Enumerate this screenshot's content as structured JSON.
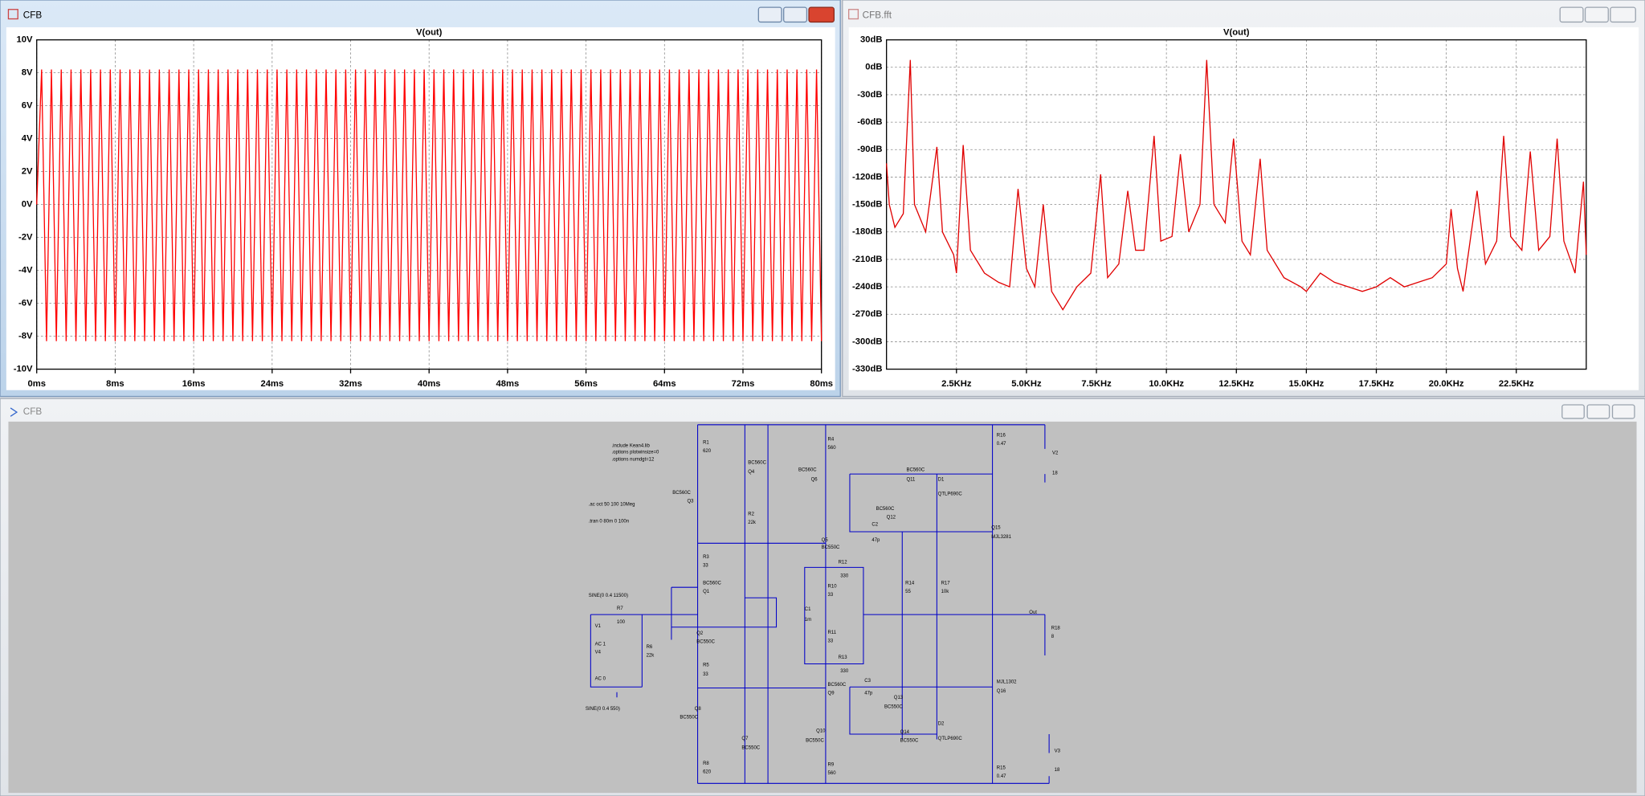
{
  "windows": {
    "transient_title": "CFB",
    "fft_title": "CFB.fft",
    "schematic_title": "CFB"
  },
  "chart_data": [
    {
      "type": "line",
      "title": "V(out)",
      "color": "#ff0000",
      "grid": true,
      "x": [
        0,
        0.5,
        1,
        1.5,
        2,
        2.5,
        3,
        3.5,
        4,
        4.5,
        5,
        5.5,
        6,
        6.5,
        7,
        7.5,
        8,
        8.5,
        9,
        9.5,
        10,
        10.5,
        11,
        11.5,
        12,
        12.5,
        13,
        13.5,
        14,
        14.5,
        15,
        15.5,
        16,
        16.5,
        17,
        17.5,
        18,
        18.5,
        19,
        19.5,
        20,
        20.5,
        21,
        21.5,
        22,
        22.5,
        23,
        23.5,
        24,
        24.5,
        25,
        25.5,
        26,
        26.5,
        27,
        27.5,
        28,
        28.5,
        29,
        29.5,
        30,
        30.5,
        31,
        31.5,
        32,
        32.5,
        33,
        33.5,
        34,
        34.5,
        35,
        35.5,
        36,
        36.5,
        37,
        37.5,
        38,
        38.5,
        39,
        39.5,
        40,
        40.5,
        41,
        41.5,
        42,
        42.5,
        43,
        43.5,
        44,
        44.5,
        45,
        45.5,
        46,
        46.5,
        47,
        47.5,
        48,
        48.5,
        49,
        49.5,
        50,
        50.5,
        51,
        51.5,
        52,
        52.5,
        53,
        53.5,
        54,
        54.5,
        55,
        55.5,
        56,
        56.5,
        57,
        57.5,
        58,
        58.5,
        59,
        59.5,
        60,
        60.5,
        61,
        61.5,
        62,
        62.5,
        63,
        63.5,
        64,
        64.5,
        65,
        65.5,
        66,
        66.5,
        67,
        67.5,
        68,
        68.5,
        69,
        69.5,
        70,
        70.5,
        71,
        71.5,
        72,
        72.5,
        73,
        73.5,
        74,
        74.5,
        75,
        75.5,
        76,
        76.5,
        77,
        77.5,
        78,
        78.5,
        79,
        79.5,
        80
      ],
      "values": [
        0,
        8.2,
        -8.3,
        8.2,
        -8.3,
        8.2,
        -8.3,
        8.2,
        -8.3,
        8.2,
        -8.3,
        8.2,
        -8.3,
        8.2,
        -8.3,
        8.2,
        -8.3,
        8.2,
        -8.3,
        8.2,
        -8.3,
        8.2,
        -8.3,
        8.2,
        -8.3,
        8.2,
        -8.3,
        8.2,
        -8.3,
        8.2,
        -8.3,
        8.2,
        -8.3,
        8.2,
        -8.3,
        8.2,
        -8.3,
        8.2,
        -8.3,
        8.2,
        -8.3,
        8.2,
        -8.3,
        8.2,
        -8.3,
        8.2,
        -8.3,
        8.2,
        -8.3,
        8.2,
        -8.3,
        8.2,
        -8.3,
        8.2,
        -8.3,
        8.2,
        -8.3,
        8.2,
        -8.3,
        8.2,
        -8.3,
        8.2,
        -8.3,
        8.2,
        -8.3,
        8.2,
        -8.3,
        8.2,
        -8.3,
        8.2,
        -8.3,
        8.2,
        -8.3,
        8.2,
        -8.3,
        8.2,
        -8.3,
        8.2,
        -8.3,
        8.2,
        -8.3,
        8.2,
        -8.3,
        8.2,
        -8.3,
        8.2,
        -8.3,
        8.2,
        -8.3,
        8.2,
        -8.3,
        8.2,
        -8.3,
        8.2,
        -8.3,
        8.2,
        -8.3,
        8.2,
        -8.3,
        8.2,
        -8.3,
        8.2,
        -8.3,
        8.2,
        -8.3,
        8.2,
        -8.3,
        8.2,
        -8.3,
        8.2,
        -8.3,
        8.2,
        -8.3,
        8.2,
        -8.3,
        8.2,
        -8.3,
        8.2,
        -8.3,
        8.2,
        -8.3,
        8.2,
        -8.3,
        8.2,
        -8.3,
        8.2,
        -8.3,
        8.2,
        -8.3,
        8.2,
        -8.3,
        8.2,
        -8.3,
        8.2,
        -8.3,
        8.2,
        -8.3,
        8.2,
        -8.3,
        8.2,
        -8.3,
        8.2,
        -8.3,
        8.2,
        -8.3,
        8.2,
        -8.3,
        8.2,
        -8.3,
        8.2,
        -8.3,
        8.2,
        -8.3,
        8.2,
        -8.3,
        8.2,
        -8.3,
        8.2,
        -8.3,
        8.2,
        -8.3
      ],
      "xlim": [
        0,
        80
      ],
      "xticks": [
        {
          "value": 0,
          "label": "0ms"
        },
        {
          "value": 8,
          "label": "8ms"
        },
        {
          "value": 16,
          "label": "16ms"
        },
        {
          "value": 24,
          "label": "24ms"
        },
        {
          "value": 32,
          "label": "32ms"
        },
        {
          "value": 40,
          "label": "40ms"
        },
        {
          "value": 48,
          "label": "48ms"
        },
        {
          "value": 56,
          "label": "56ms"
        },
        {
          "value": 64,
          "label": "64ms"
        },
        {
          "value": 72,
          "label": "72ms"
        },
        {
          "value": 80,
          "label": "80ms"
        }
      ],
      "ylim": [
        -10,
        10
      ],
      "yticks": [
        {
          "value": 10,
          "label": "10V"
        },
        {
          "value": 8,
          "label": "8V"
        },
        {
          "value": 6,
          "label": "6V"
        },
        {
          "value": 4,
          "label": "4V"
        },
        {
          "value": 2,
          "label": "2V"
        },
        {
          "value": 0,
          "label": "0V"
        },
        {
          "value": -2,
          "label": "-2V"
        },
        {
          "value": -4,
          "label": "-4V"
        },
        {
          "value": -6,
          "label": "-6V"
        },
        {
          "value": -8,
          "label": "-8V"
        },
        {
          "value": -10,
          "label": "-10V"
        }
      ]
    },
    {
      "type": "line",
      "title": "V(out)",
      "color": "#e00000",
      "grid": true,
      "x": [
        0,
        0.1,
        0.3,
        0.6,
        0.85,
        1.0,
        1.4,
        1.8,
        2.0,
        2.4,
        2.5,
        2.74,
        3.0,
        3.5,
        4.0,
        4.4,
        4.7,
        5.0,
        5.3,
        5.6,
        5.9,
        6.3,
        6.8,
        7.3,
        7.65,
        7.9,
        8.3,
        8.62,
        8.9,
        9.2,
        9.56,
        9.8,
        10.2,
        10.5,
        10.8,
        11.2,
        11.44,
        11.7,
        12.1,
        12.4,
        12.7,
        13.0,
        13.35,
        13.6,
        14.2,
        14.8,
        15.0,
        15.5,
        16.0,
        16.5,
        17.0,
        17.5,
        18.0,
        18.5,
        19.0,
        19.5,
        20.0,
        20.17,
        20.4,
        20.6,
        21.1,
        21.4,
        21.8,
        22.05,
        22.3,
        22.7,
        23.0,
        23.3,
        23.7,
        23.96,
        24.2,
        24.6,
        24.9,
        25.0
      ],
      "values": [
        -105,
        -150,
        -175,
        -160,
        8,
        -150,
        -180,
        -87,
        -180,
        -205,
        -225,
        -85,
        -200,
        -225,
        -235,
        -240,
        -133,
        -220,
        -240,
        -150,
        -245,
        -265,
        -240,
        -225,
        -117,
        -230,
        -215,
        -135,
        -200,
        -200,
        -75,
        -190,
        -185,
        -95,
        -180,
        -150,
        8,
        -150,
        -170,
        -78,
        -190,
        -205,
        -100,
        -200,
        -230,
        -240,
        -245,
        -225,
        -235,
        -240,
        -245,
        -240,
        -230,
        -240,
        -235,
        -230,
        -215,
        -155,
        -220,
        -245,
        -135,
        -215,
        -190,
        -75,
        -185,
        -200,
        -92,
        -200,
        -185,
        -78,
        -190,
        -225,
        -125,
        -205
      ],
      "xlim": [
        0,
        25
      ],
      "xticks": [
        {
          "value": 2.5,
          "label": "2.5KHz"
        },
        {
          "value": 5,
          "label": "5.0KHz"
        },
        {
          "value": 7.5,
          "label": "7.5KHz"
        },
        {
          "value": 10,
          "label": "10.0KHz"
        },
        {
          "value": 12.5,
          "label": "12.5KHz"
        },
        {
          "value": 15,
          "label": "15.0KHz"
        },
        {
          "value": 17.5,
          "label": "17.5KHz"
        },
        {
          "value": 20,
          "label": "20.0KHz"
        },
        {
          "value": 22.5,
          "label": "22.5KHz"
        }
      ],
      "ylim": [
        -330,
        30
      ],
      "yticks": [
        {
          "value": 30,
          "label": "30dB"
        },
        {
          "value": 0,
          "label": "0dB"
        },
        {
          "value": -30,
          "label": "-30dB"
        },
        {
          "value": -60,
          "label": "-60dB"
        },
        {
          "value": -90,
          "label": "-90dB"
        },
        {
          "value": -120,
          "label": "-120dB"
        },
        {
          "value": -150,
          "label": "-150dB"
        },
        {
          "value": -180,
          "label": "-180dB"
        },
        {
          "value": -210,
          "label": "-210dB"
        },
        {
          "value": -240,
          "label": "-240dB"
        },
        {
          "value": -270,
          "label": "-270dB"
        },
        {
          "value": -300,
          "label": "-300dB"
        },
        {
          "value": -330,
          "label": "-330dB"
        }
      ]
    }
  ],
  "schematic": {
    "directives": [
      ".include Kean4.lib",
      ".options plotwinsize=0",
      ".options numdgt=12",
      ".ac oct 50 100 10Meg",
      ".tran 0 80m 0 100n",
      "SINE(0 0.4 11500)",
      "SINE(0 0.4 550)"
    ],
    "net_label": "Out",
    "components": [
      {
        "ref": "R1",
        "value": "620"
      },
      {
        "ref": "Q4",
        "value": "BC560C"
      },
      {
        "ref": "Q3",
        "value": "BC560C"
      },
      {
        "ref": "R2",
        "value": "22k"
      },
      {
        "ref": "R3",
        "value": "33"
      },
      {
        "ref": "Q1",
        "value": "BC560C"
      },
      {
        "ref": "R7",
        "value": "100"
      },
      {
        "ref": "V1",
        "value": "AC 1"
      },
      {
        "ref": "V4",
        "value": "AC 0"
      },
      {
        "ref": "R6",
        "value": "22k"
      },
      {
        "ref": "Q2",
        "value": "BC550C"
      },
      {
        "ref": "R5",
        "value": "33"
      },
      {
        "ref": "Q8",
        "value": "BC550C"
      },
      {
        "ref": "Q7",
        "value": "BC550C"
      },
      {
        "ref": "R8",
        "value": "620"
      },
      {
        "ref": "R4",
        "value": "560"
      },
      {
        "ref": "Q6",
        "value": "BC560C"
      },
      {
        "ref": "Q5",
        "value": "BC550C"
      },
      {
        "ref": "R12",
        "value": "330"
      },
      {
        "ref": "R10",
        "value": "33"
      },
      {
        "ref": "C1",
        "value": "1m"
      },
      {
        "ref": "R11",
        "value": "33"
      },
      {
        "ref": "R13",
        "value": "330"
      },
      {
        "ref": "Q9",
        "value": "BC560C"
      },
      {
        "ref": "Q10",
        "value": "BC550C"
      },
      {
        "ref": "R9",
        "value": "560"
      },
      {
        "ref": "Q11",
        "value": "BC560C"
      },
      {
        "ref": "D1",
        "value": "QTLP690C"
      },
      {
        "ref": "Q12",
        "value": "BC560C"
      },
      {
        "ref": "C2",
        "value": "47p"
      },
      {
        "ref": "R14",
        "value": "55"
      },
      {
        "ref": "R17",
        "value": "10k"
      },
      {
        "ref": "C3",
        "value": "47p"
      },
      {
        "ref": "Q13",
        "value": "BC550C"
      },
      {
        "ref": "Q14",
        "value": "BC550C"
      },
      {
        "ref": "D2",
        "value": "QTLP690C"
      },
      {
        "ref": "R16",
        "value": "0.47"
      },
      {
        "ref": "V2",
        "value": "18"
      },
      {
        "ref": "Q15",
        "value": "MJL3281"
      },
      {
        "ref": "R18",
        "value": "8"
      },
      {
        "ref": "Q16",
        "value": "MJL1302"
      },
      {
        "ref": "R15",
        "value": "0.47"
      },
      {
        "ref": "V3",
        "value": "18"
      }
    ]
  }
}
